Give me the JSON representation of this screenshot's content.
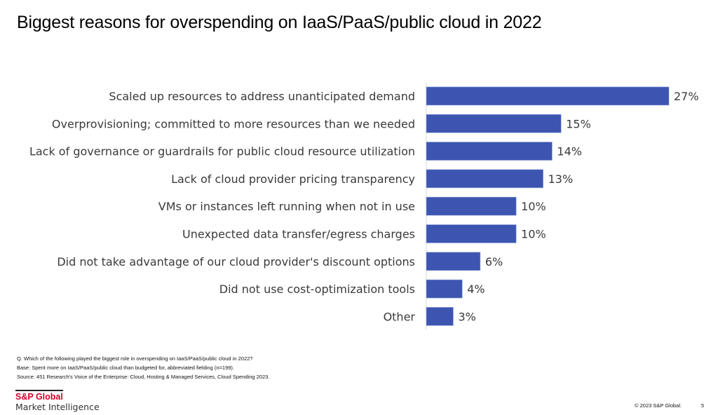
{
  "slide": {
    "title": "Biggest reasons for overspending on IaaS/PaaS/public cloud in 2022",
    "notes": [
      "Q. Which of the following played the biggest role in overspending on IaaS/PaaS/public cloud in 2022?",
      "Base: Spent more on IaaS/PaaS/public cloud than budgeted for, abbreviated fielding (n=199).",
      "Source: 451 Research's Voice of the Enterprise: Cloud, Hosting & Managed Services, Cloud Spending 2023."
    ],
    "logo": {
      "brand": "S&P Global",
      "sub": "Market Intelligence",
      "brand_color": "#d6002a"
    },
    "copyright": "© 2023 S&P Global.",
    "page_number": "5"
  },
  "chart_data": {
    "type": "bar",
    "orientation": "horizontal",
    "title": "Biggest reasons for overspending on IaaS/PaaS/public cloud in 2022",
    "xlabel": "",
    "ylabel": "",
    "unit": "%",
    "grid": false,
    "legend": null,
    "xlim": [
      0,
      27
    ],
    "bar_color": "#3d55b0",
    "categories": [
      "Scaled up resources to address unanticipated demand",
      "Overprovisioning; committed to more resources than we needed",
      "Lack of governance or guardrails for public cloud resource utilization",
      "Lack of cloud provider pricing transparency",
      "VMs or instances left running when not in use",
      "Unexpected data transfer/egress charges",
      "Did not take advantage of our cloud provider's discount options",
      "Did not use cost-optimization tools",
      "Other"
    ],
    "values": [
      27,
      15,
      14,
      13,
      10,
      10,
      6,
      4,
      3
    ],
    "value_labels": [
      "27%",
      "15%",
      "14%",
      "13%",
      "10%",
      "10%",
      "6%",
      "4%",
      "3%"
    ]
  }
}
